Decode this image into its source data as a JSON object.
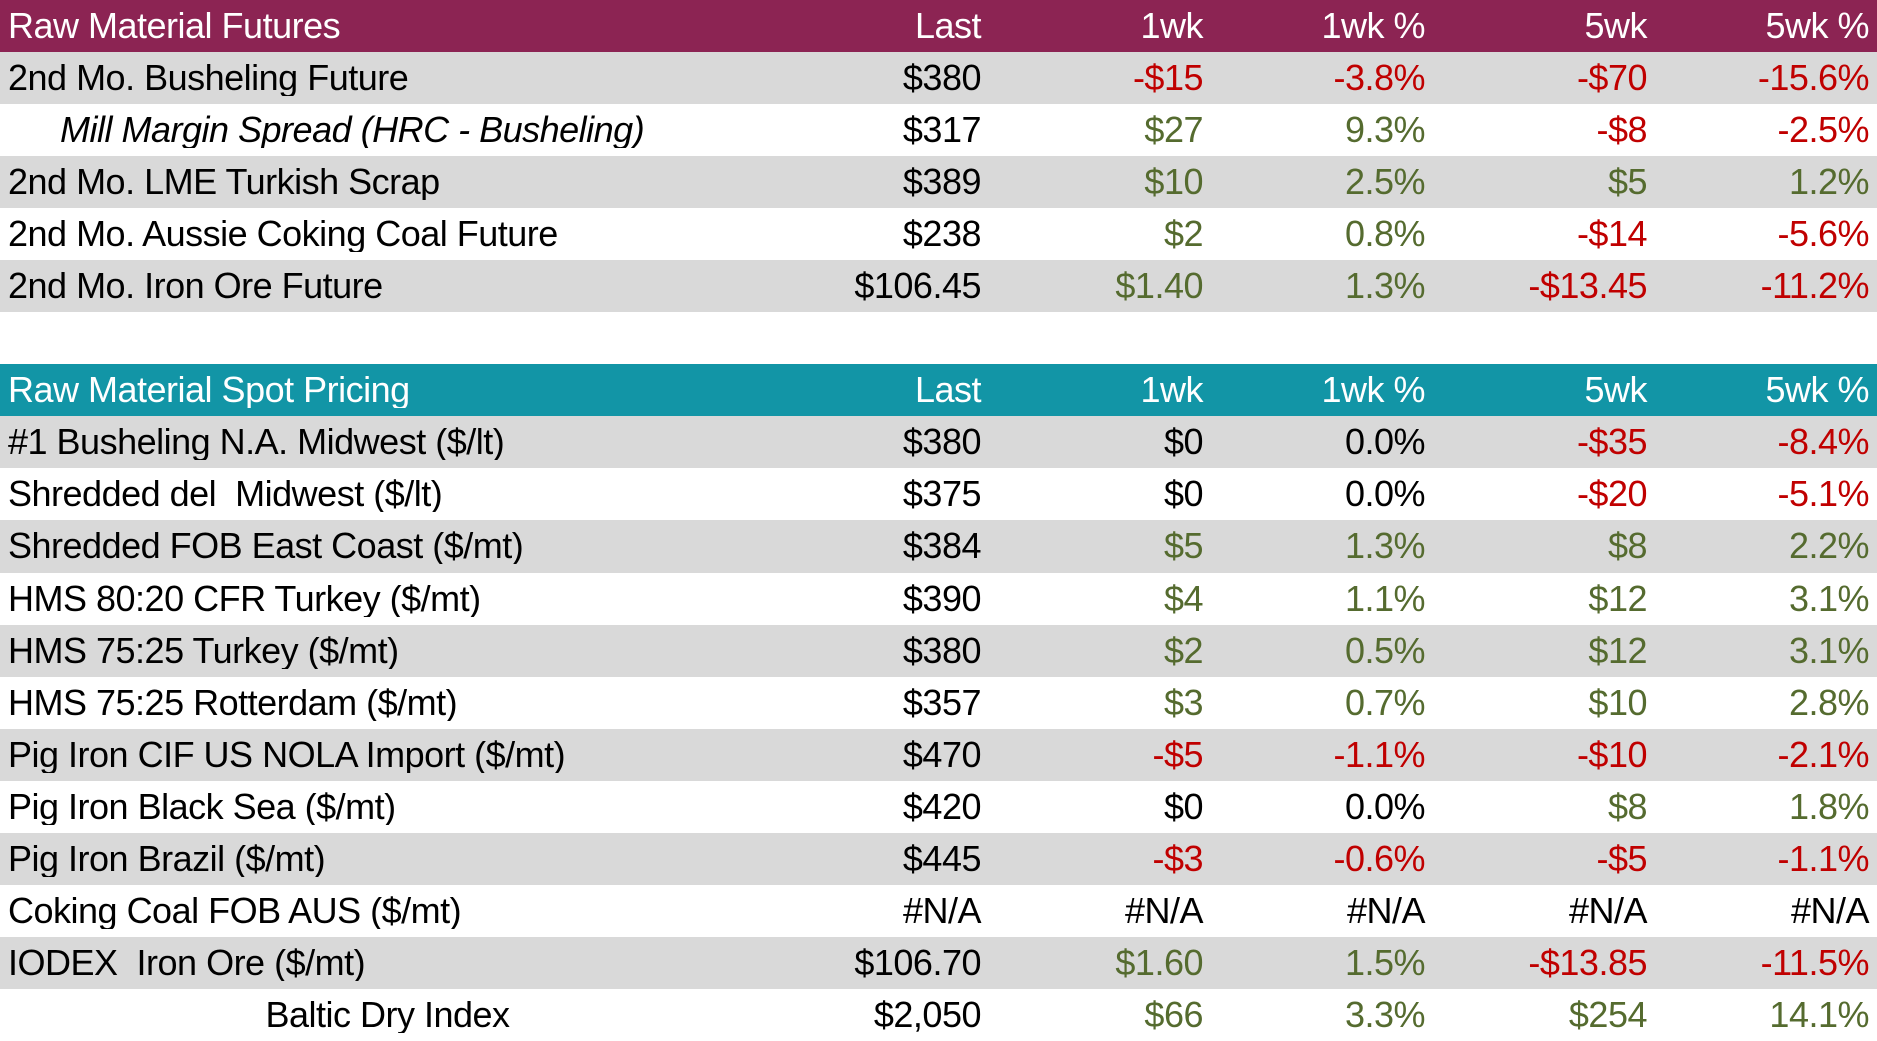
{
  "colors": {
    "futures_header_bg": "#8C2453",
    "spot_header_bg": "#1295A6",
    "stripe_bg": "#D9D9D9",
    "row_bg": "#FFFFFF",
    "header_text": "#FFFFFF",
    "positive": "#556B2F",
    "negative": "#C00000",
    "neutral": "#000000"
  },
  "chart_data": [
    {
      "type": "table",
      "title": "Raw Material Futures",
      "columns": [
        "Last",
        "1wk",
        "1wk %",
        "5wk",
        "5wk %"
      ],
      "rows": [
        {
          "label": "2nd Mo. Busheling Future",
          "label_style": "",
          "values": [
            "$380",
            "-$15",
            "-3.8%",
            "-$70",
            "-15.6%"
          ],
          "colors": [
            "neu",
            "neg",
            "neg",
            "neg",
            "neg"
          ]
        },
        {
          "label": "Mill Margin Spread (HRC - Busheling)",
          "label_style": "indent",
          "values": [
            "$317",
            "$27",
            "9.3%",
            "-$8",
            "-2.5%"
          ],
          "colors": [
            "neu",
            "pos",
            "pos",
            "neg",
            "neg"
          ]
        },
        {
          "label": "2nd Mo. LME Turkish Scrap",
          "label_style": "",
          "values": [
            "$389",
            "$10",
            "2.5%",
            "$5",
            "1.2%"
          ],
          "colors": [
            "neu",
            "pos",
            "pos",
            "pos",
            "pos"
          ]
        },
        {
          "label": "2nd Mo. Aussie Coking Coal Future",
          "label_style": "",
          "values": [
            "$238",
            "$2",
            "0.8%",
            "-$14",
            "-5.6%"
          ],
          "colors": [
            "neu",
            "pos",
            "pos",
            "neg",
            "neg"
          ]
        },
        {
          "label": "2nd Mo. Iron Ore Future",
          "label_style": "",
          "values": [
            "$106.45",
            "$1.40",
            "1.3%",
            "-$13.45",
            "-11.2%"
          ],
          "colors": [
            "neu",
            "pos",
            "pos",
            "neg",
            "neg"
          ]
        }
      ]
    },
    {
      "type": "table",
      "title": "Raw Material Spot Pricing",
      "columns": [
        "Last",
        "1wk",
        "1wk %",
        "5wk",
        "5wk %"
      ],
      "rows": [
        {
          "label": "#1 Busheling N.A. Midwest ($/lt)",
          "label_style": "",
          "values": [
            "$380",
            "$0",
            "0.0%",
            "-$35",
            "-8.4%"
          ],
          "colors": [
            "neu",
            "neu",
            "neu",
            "neg",
            "neg"
          ]
        },
        {
          "label": "Shredded del  Midwest ($/lt)",
          "label_style": "",
          "values": [
            "$375",
            "$0",
            "0.0%",
            "-$20",
            "-5.1%"
          ],
          "colors": [
            "neu",
            "neu",
            "neu",
            "neg",
            "neg"
          ]
        },
        {
          "label": "Shredded FOB East Coast ($/mt)",
          "label_style": "",
          "values": [
            "$384",
            "$5",
            "1.3%",
            "$8",
            "2.2%"
          ],
          "colors": [
            "neu",
            "pos",
            "pos",
            "pos",
            "pos"
          ]
        },
        {
          "label": "HMS 80:20 CFR Turkey ($/mt)",
          "label_style": "",
          "values": [
            "$390",
            "$4",
            "1.1%",
            "$12",
            "3.1%"
          ],
          "colors": [
            "neu",
            "pos",
            "pos",
            "pos",
            "pos"
          ]
        },
        {
          "label": "HMS 75:25 Turkey ($/mt)",
          "label_style": "",
          "values": [
            "$380",
            "$2",
            "0.5%",
            "$12",
            "3.1%"
          ],
          "colors": [
            "neu",
            "pos",
            "pos",
            "pos",
            "pos"
          ]
        },
        {
          "label": "HMS 75:25 Rotterdam ($/mt)",
          "label_style": "",
          "values": [
            "$357",
            "$3",
            "0.7%",
            "$10",
            "2.8%"
          ],
          "colors": [
            "neu",
            "pos",
            "pos",
            "pos",
            "pos"
          ]
        },
        {
          "label": "Pig Iron CIF US NOLA Import ($/mt)",
          "label_style": "",
          "values": [
            "$470",
            "-$5",
            "-1.1%",
            "-$10",
            "-2.1%"
          ],
          "colors": [
            "neu",
            "neg",
            "neg",
            "neg",
            "neg"
          ]
        },
        {
          "label": "Pig Iron Black Sea ($/mt)",
          "label_style": "",
          "values": [
            "$420",
            "$0",
            "0.0%",
            "$8",
            "1.8%"
          ],
          "colors": [
            "neu",
            "neu",
            "neu",
            "pos",
            "pos"
          ]
        },
        {
          "label": "Pig Iron Brazil ($/mt)",
          "label_style": "",
          "values": [
            "$445",
            "-$3",
            "-0.6%",
            "-$5",
            "-1.1%"
          ],
          "colors": [
            "neu",
            "neg",
            "neg",
            "neg",
            "neg"
          ]
        },
        {
          "label": "Coking Coal FOB AUS ($/mt)",
          "label_style": "",
          "values": [
            "#N/A",
            "#N/A",
            "#N/A",
            "#N/A",
            "#N/A"
          ],
          "colors": [
            "neu",
            "neu",
            "neu",
            "neu",
            "neu"
          ]
        },
        {
          "label": "IODEX  Iron Ore ($/mt)",
          "label_style": "",
          "values": [
            "$106.70",
            "$1.60",
            "1.5%",
            "-$13.85",
            "-11.5%"
          ],
          "colors": [
            "neu",
            "pos",
            "pos",
            "neg",
            "neg"
          ]
        },
        {
          "label": "Baltic Dry Index",
          "label_style": "center",
          "values": [
            "$2,050",
            "$66",
            "3.3%",
            "$254",
            "14.1%"
          ],
          "colors": [
            "neu",
            "pos",
            "pos",
            "pos",
            "pos"
          ]
        }
      ]
    }
  ]
}
